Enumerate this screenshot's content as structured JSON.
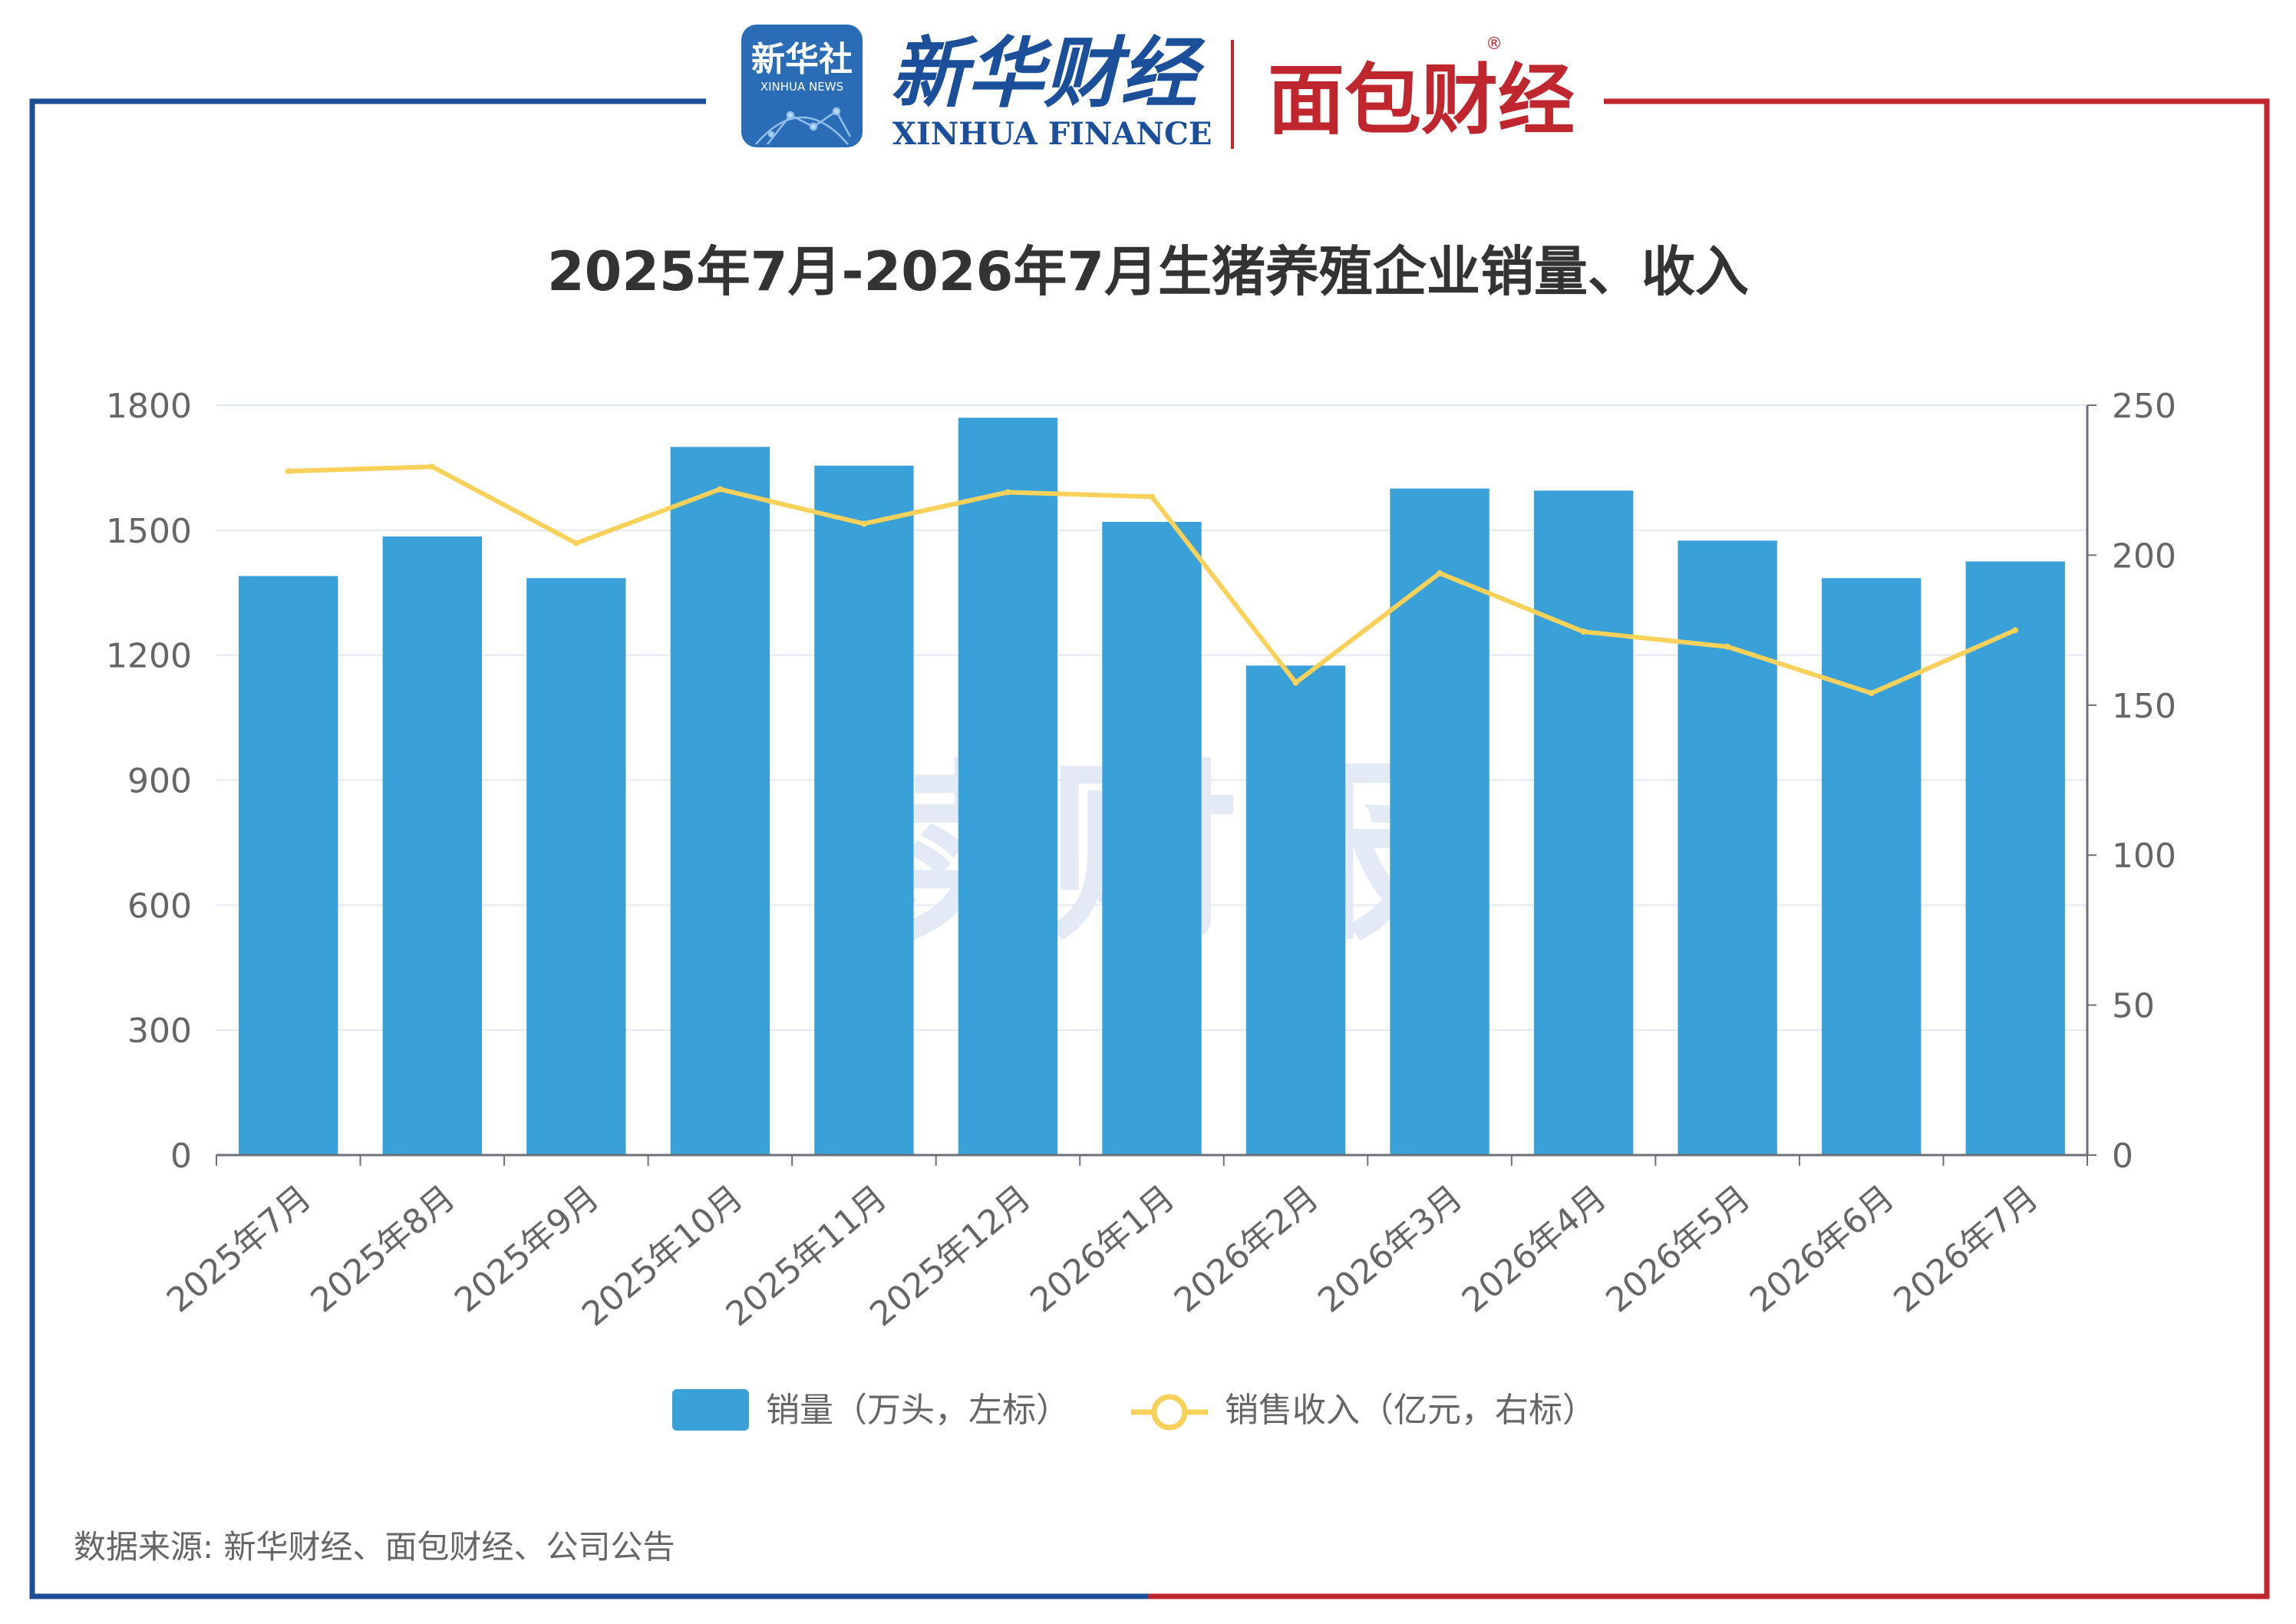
{
  "header": {
    "xinhua_badge_line1": "新华社",
    "xinhua_badge_line2": "XINHUA NEWS",
    "xinhua_finance_cn": "新华财经",
    "xinhua_finance_en": "XINHUA FINANCE",
    "mianbao_logo": "面包财经",
    "registered_mark": "®"
  },
  "watermark": "读财报",
  "source_note": "数据来源: 新华财经、面包财经、公司公告",
  "colors": {
    "frame_left": "#1d4f96",
    "frame_right": "#c0262e",
    "bar": "#3aa0d8",
    "line": "#f7d15a",
    "axis_text": "#666666",
    "grid": "#e3e8f3",
    "title": "#333333",
    "badge": "#2a6cb5",
    "xinhua_blue": "#1b4f9a",
    "mianbao_red": "#c0262e",
    "watermark": "#cdd9ee"
  },
  "chart_data": {
    "type": "bar",
    "title": "2025年7月-2026年7月生猪养殖企业销量、收入",
    "categories": [
      "2025年7月",
      "2025年8月",
      "2025年9月",
      "2025年10月",
      "2025年11月",
      "2025年12月",
      "2026年1月",
      "2026年2月",
      "2026年3月",
      "2026年4月",
      "2026年5月",
      "2026年6月",
      "2026年7月"
    ],
    "series": [
      {
        "name": "销量（万头，左标）",
        "type": "bar",
        "axis": "left",
        "values": [
          1390,
          1485,
          1385,
          1700,
          1655,
          1770,
          1520,
          1175,
          1600,
          1595,
          1475,
          1385,
          1425
        ]
      },
      {
        "name": "销售收入（亿元，右标）",
        "type": "line",
        "axis": "right",
        "values": [
          228,
          229.5,
          204,
          222,
          210.5,
          221,
          219.5,
          157.5,
          194,
          174.5,
          169.5,
          154,
          175
        ]
      }
    ],
    "y_left": {
      "min": 0,
      "max": 1800,
      "ticks": [
        "0",
        "300",
        "600",
        "900",
        "1200",
        "1500",
        "1800"
      ]
    },
    "y_right": {
      "min": 0,
      "max": 250,
      "ticks": [
        "0",
        "50",
        "100",
        "150",
        "200",
        "250"
      ]
    },
    "grid": true,
    "legend": "bottom-center"
  }
}
